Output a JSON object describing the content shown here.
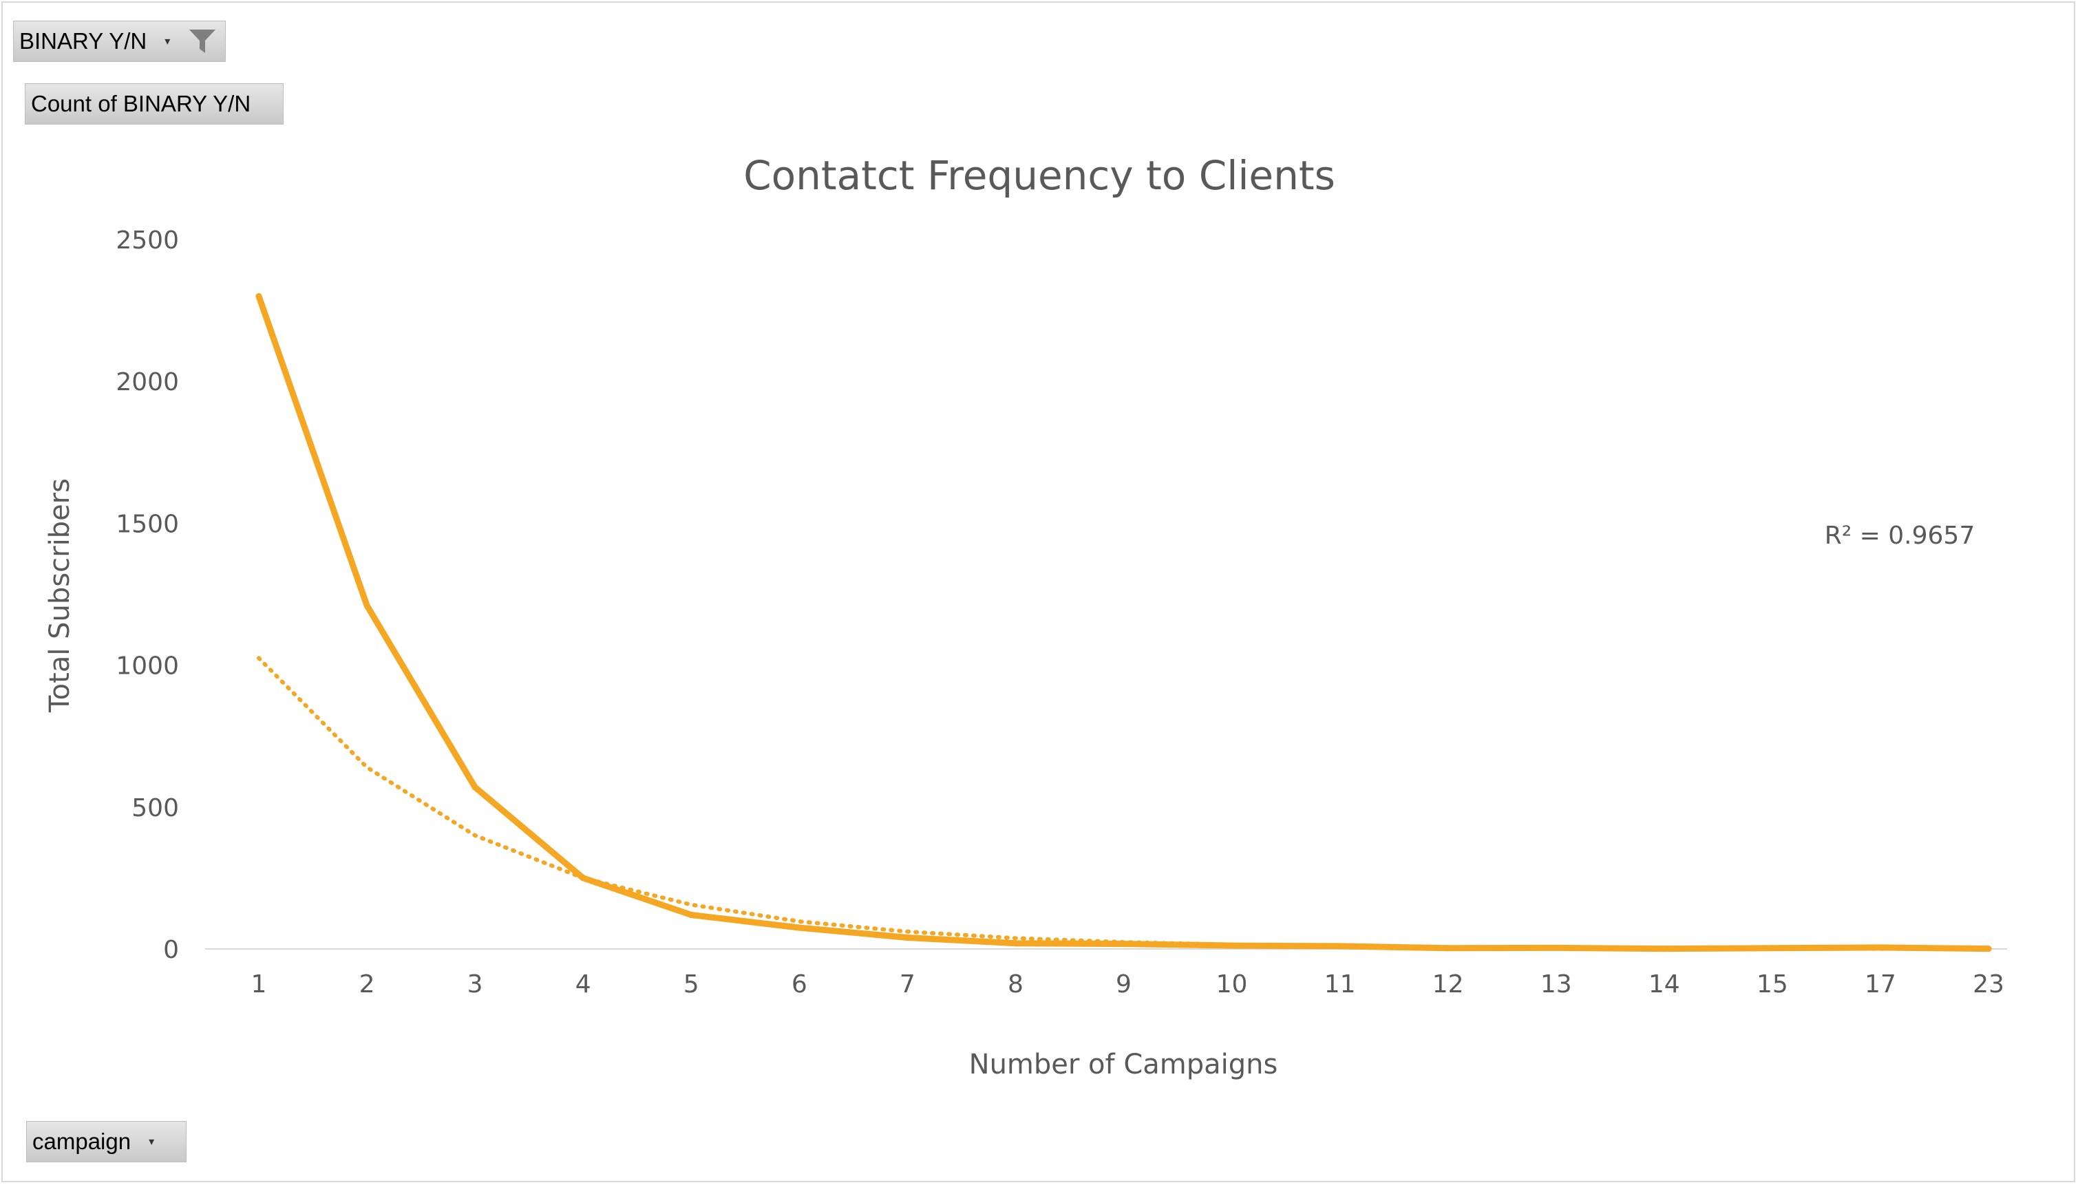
{
  "pivot": {
    "filter_field": "BINARY Y/N",
    "value_field": "Count of BINARY Y/N",
    "axis_field": "campaign"
  },
  "chart_data": {
    "type": "line",
    "title": "Contatct Frequency to Clients",
    "xlabel": "Number of Campaigns",
    "ylabel": "Total Subscribers",
    "categories": [
      "1",
      "2",
      "3",
      "4",
      "5",
      "6",
      "7",
      "8",
      "9",
      "10",
      "11",
      "12",
      "13",
      "14",
      "15",
      "17",
      "23"
    ],
    "series": [
      {
        "values": [
          2300,
          1210,
          570,
          250,
          120,
          75,
          40,
          20,
          18,
          12,
          10,
          3,
          4,
          1,
          3,
          5,
          1
        ],
        "color": "#F5A623"
      }
    ],
    "trendline": {
      "style": "dotted",
      "color": "#F5A623",
      "values": [
        1025,
        640,
        400,
        250,
        156,
        97,
        61,
        38,
        24,
        15,
        9,
        6,
        4,
        2,
        1.5,
        1,
        0.5
      ],
      "r_squared_label": "R² = 0.9657"
    },
    "y_ticks": [
      "0",
      "500",
      "1000",
      "1500",
      "2000",
      "2500"
    ],
    "ylim": [
      0,
      2500
    ],
    "grid": false,
    "legend": "none"
  }
}
